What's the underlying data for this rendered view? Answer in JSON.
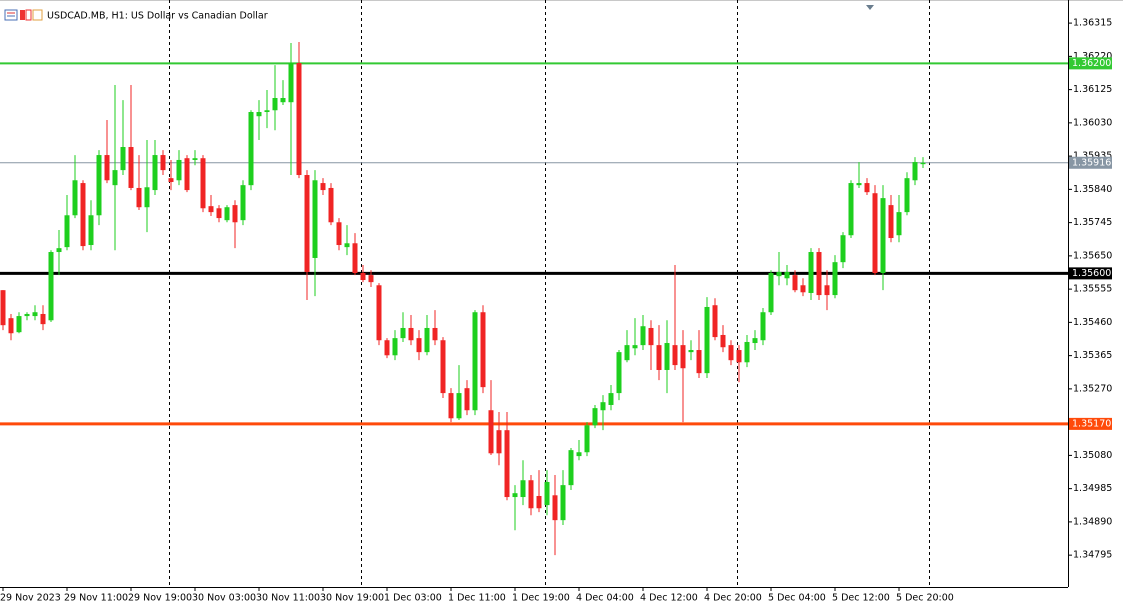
{
  "chart_data": {
    "type": "candlestick",
    "title": "USDCAD.MB, H1:  US Dollar vs Canadian Dollar",
    "up_color": "#1ecf1e",
    "down_color": "#f02424",
    "categories": [
      "29 Nov 2023",
      null,
      null,
      null,
      null,
      null,
      null,
      null,
      "29 Nov 11:00",
      null,
      null,
      null,
      null,
      null,
      null,
      null,
      "29 Nov 19:00",
      null,
      null,
      null,
      null,
      null,
      null,
      null,
      "30 Nov 03:00",
      null,
      null,
      null,
      null,
      null,
      null,
      null,
      "30 Nov 11:00",
      null,
      null,
      null,
      null,
      null,
      null,
      null,
      "30 Nov 19:00",
      null,
      null,
      null,
      null,
      null,
      null,
      null,
      "1 Dec 03:00",
      null,
      null,
      null,
      null,
      null,
      null,
      null,
      "1 Dec 11:00",
      null,
      null,
      null,
      null,
      null,
      null,
      null,
      "1 Dec 19:00",
      null,
      null,
      null,
      null,
      null,
      null,
      null,
      "4 Dec 04:00",
      null,
      null,
      null,
      null,
      null,
      null,
      null,
      "4 Dec 12:00",
      null,
      null,
      null,
      null,
      null,
      null,
      null,
      "4 Dec 20:00",
      null,
      null,
      null,
      null,
      null,
      null,
      null,
      "5 Dec 04:00",
      null,
      null,
      null,
      null,
      null,
      null,
      null,
      "5 Dec 12:00",
      null,
      null,
      null,
      null,
      null,
      null,
      null,
      "5 Dec 20:00",
      null,
      null,
      null
    ],
    "open": [
      1.35552,
      1.35472,
      1.35432,
      1.35478,
      1.35478,
      1.35484,
      1.35466,
      1.35661,
      1.35675,
      1.35766,
      1.35858,
      1.35681,
      1.35766,
      1.35938,
      1.35852,
      1.35895,
      1.35961,
      1.35844,
      1.35789,
      1.35838,
      1.35938,
      1.35872,
      1.35866,
      1.35929,
      1.35924,
      1.35929,
      1.35792,
      1.35786,
      1.35752,
      1.35795,
      1.35752,
      1.35852,
      1.36049,
      1.36061,
      1.36066,
      1.36089,
      1.36089,
      1.36201,
      1.35881,
      1.35644,
      1.35858,
      1.35844,
      1.35746,
      1.35675,
      1.35686,
      1.35601,
      1.35595,
      1.35566,
      1.35409,
      1.35366,
      1.35415,
      1.35444,
      1.35415,
      1.35375,
      1.35444,
      1.35409,
      1.35258,
      1.35186,
      1.35272,
      1.35209,
      1.35489,
      1.35209,
      1.35152,
      1.35152,
      1.34961,
      1.34961,
      1.35009,
      1.34964,
      1.34938,
      1.34966,
      1.34895,
      1.34995,
      1.35078,
      1.35089,
      1.35166,
      1.35209,
      1.35224,
      1.35258,
      1.35352,
      1.35386,
      1.35395,
      1.35444,
      1.35395,
      1.35324,
      1.35395,
      1.35395,
      1.35375,
      1.35381,
      1.35315,
      1.35509,
      1.35424,
      1.35395,
      1.35381,
      1.35346,
      1.35401,
      1.35409,
      1.35489,
      1.35592,
      1.35586,
      1.35595,
      1.35566,
      1.35544,
      1.35661,
      1.35566,
      1.35538,
      1.35632,
      1.35709,
      1.35852,
      1.35858,
      1.35829,
      1.35601,
      1.35795,
      1.35709,
      1.35775,
      1.35866,
      1.35912
    ],
    "high": [
      1.35552,
      1.35484,
      1.35489,
      1.35489,
      1.35509,
      1.35509,
      1.35666,
      1.35724,
      1.35824,
      1.35938,
      1.35866,
      1.35809,
      1.35952,
      1.36038,
      1.36138,
      1.36095,
      1.36138,
      1.35938,
      1.35981,
      1.35981,
      1.35952,
      1.35924,
      1.35952,
      1.35938,
      1.35952,
      1.35938,
      1.35824,
      1.35795,
      1.35795,
      1.35809,
      1.35866,
      1.36066,
      1.36095,
      1.36124,
      1.36195,
      1.36152,
      1.36258,
      1.36261,
      1.35895,
      1.35895,
      1.35872,
      1.35858,
      1.35758,
      1.35738,
      1.35715,
      1.35624,
      1.35609,
      1.35572,
      1.35415,
      1.35438,
      1.35489,
      1.35481,
      1.35438,
      1.35481,
      1.35495,
      1.35418,
      1.35272,
      1.35338,
      1.35295,
      1.35495,
      1.35509,
      1.35295,
      1.35204,
      1.35204,
      1.34995,
      1.35066,
      1.35024,
      1.35038,
      1.35038,
      1.35024,
      1.35038,
      1.35101,
      1.35124,
      1.35175,
      1.35224,
      1.35252,
      1.35281,
      1.35381,
      1.35438,
      1.35472,
      1.35481,
      1.35466,
      1.35452,
      1.35466,
      1.35624,
      1.35438,
      1.35409,
      1.35438,
      1.35532,
      1.35529,
      1.35452,
      1.35409,
      1.35395,
      1.35424,
      1.35438,
      1.35501,
      1.35609,
      1.35661,
      1.35624,
      1.35609,
      1.35586,
      1.35672,
      1.35672,
      1.35609,
      1.35652,
      1.35718,
      1.35866,
      1.35918,
      1.35872,
      1.35852,
      1.35852,
      1.35824,
      1.35824,
      1.35889,
      1.35932,
      1.35932
    ],
    "low": [
      1.35438,
      1.35409,
      1.35429,
      1.35466,
      1.35466,
      1.35438,
      1.35461,
      1.35595,
      1.35666,
      1.35758,
      1.35666,
      1.35666,
      1.35738,
      1.35858,
      1.35666,
      1.35881,
      1.35838,
      1.35781,
      1.35718,
      1.35824,
      1.35881,
      1.35838,
      1.35852,
      1.35832,
      1.35909,
      1.35775,
      1.35764,
      1.35746,
      1.35746,
      1.35672,
      1.35738,
      1.35838,
      1.35981,
      1.36015,
      1.36009,
      1.36081,
      1.35881,
      1.35872,
      1.35524,
      1.35535,
      1.35824,
      1.35738,
      1.35666,
      1.35652,
      1.35595,
      1.35575,
      1.35561,
      1.35395,
      1.35358,
      1.35352,
      1.35404,
      1.35395,
      1.35352,
      1.35366,
      1.35395,
      1.35244,
      1.35175,
      1.35181,
      1.35195,
      1.35195,
      1.35258,
      1.35081,
      1.35052,
      1.34952,
      1.34866,
      1.34938,
      1.34909,
      1.34918,
      1.34909,
      1.34795,
      1.34881,
      1.34981,
      1.35066,
      1.35078,
      1.35158,
      1.35152,
      1.35209,
      1.35238,
      1.35346,
      1.35366,
      1.35381,
      1.35324,
      1.35295,
      1.35258,
      1.35324,
      1.35175,
      1.35352,
      1.35301,
      1.35301,
      1.35409,
      1.35375,
      1.35338,
      1.35289,
      1.35332,
      1.35381,
      1.35395,
      1.35481,
      1.35566,
      1.35566,
      1.35546,
      1.35535,
      1.35524,
      1.35524,
      1.35495,
      1.35529,
      1.35615,
      1.35701,
      1.35844,
      1.35824,
      1.35595,
      1.35552,
      1.35689,
      1.35689,
      1.35766,
      1.35852,
      1.35901
    ],
    "close": [
      1.35452,
      1.35429,
      1.35478,
      1.35484,
      1.35489,
      1.35455,
      1.35661,
      1.35672,
      1.35766,
      1.35866,
      1.35678,
      1.35766,
      1.35938,
      1.35866,
      1.35895,
      1.35961,
      1.35844,
      1.35789,
      1.35846,
      1.35938,
      1.35895,
      1.35861,
      1.35924,
      1.35838,
      1.35929,
      1.35786,
      1.35775,
      1.35758,
      1.35789,
      1.35746,
      1.35852,
      1.36061,
      1.36061,
      1.36066,
      1.36101,
      1.36101,
      1.36201,
      1.35881,
      1.35604,
      1.35866,
      1.35838,
      1.35746,
      1.35681,
      1.35686,
      1.35601,
      1.35581,
      1.35575,
      1.35409,
      1.35366,
      1.35415,
      1.35444,
      1.35409,
      1.35375,
      1.35444,
      1.35409,
      1.35258,
      1.35186,
      1.35258,
      1.35209,
      1.35489,
      1.35275,
      1.35086,
      1.35086,
      1.34961,
      1.34972,
      1.35009,
      1.34929,
      1.34929,
      1.35004,
      1.34895,
      1.34995,
      1.35095,
      1.35089,
      1.35166,
      1.35215,
      1.35232,
      1.35258,
      1.35375,
      1.35395,
      1.35395,
      1.35449,
      1.35395,
      1.35324,
      1.35401,
      1.35338,
      1.35329,
      1.35381,
      1.35315,
      1.35504,
      1.35418,
      1.35389,
      1.35352,
      1.35346,
      1.35404,
      1.35415,
      1.35489,
      1.35601,
      1.35604,
      1.35604,
      1.35552,
      1.35546,
      1.35661,
      1.35538,
      1.35538,
      1.35632,
      1.35709,
      1.35858,
      1.35858,
      1.35832,
      1.35601,
      1.35815,
      1.35701,
      1.35775,
      1.35872,
      1.35918,
      1.35916
    ],
    "ylim": [
      1.34704,
      1.36381
    ],
    "yticks": [
      1.36315,
      {
        "value": 1.3622,
        "label": "1.36220"
      },
      1.36125,
      {
        "value": 1.3603,
        "label": "1.36030"
      },
      1.35935,
      {
        "value": 1.3584,
        "label": "1.35840"
      },
      1.35745,
      {
        "value": 1.3565,
        "label": "1.35650"
      },
      1.35555,
      {
        "value": 1.3546,
        "label": "1.35460"
      },
      1.35365,
      {
        "value": 1.3527,
        "label": "1.35270"
      },
      {
        "value": 1.3508,
        "label": "1.35080"
      },
      1.34985,
      {
        "value": 1.3489,
        "label": "1.34890"
      },
      1.34795
    ],
    "levels": [
      {
        "value": 1.362,
        "label": "1.36200",
        "color": "#33c933"
      },
      {
        "value": 1.35916,
        "label": "1.35916",
        "color": "#8796a4"
      },
      {
        "value": 1.356,
        "label": "1.35600",
        "color": "#000000"
      },
      {
        "value": 1.3517,
        "label": "1.35170",
        "color": "#ff4a0a"
      }
    ]
  }
}
